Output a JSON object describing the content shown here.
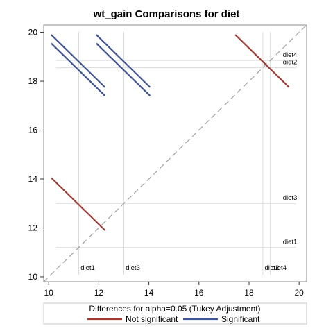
{
  "chart_data": {
    "type": "line",
    "title": "wt_gain Comparisons for diet",
    "xlabel": "",
    "ylabel": "",
    "xlim": [
      9.8,
      20.3
    ],
    "ylim": [
      9.8,
      20.3
    ],
    "xticks": [
      10,
      12,
      14,
      16,
      18,
      20
    ],
    "yticks": [
      10,
      12,
      14,
      16,
      18,
      20
    ],
    "grid": false,
    "diagonal": {
      "from": [
        9.8,
        9.8
      ],
      "to": [
        20.3,
        20.3
      ],
      "color": "#a0a0a0"
    },
    "reference_lines": [
      {
        "label": "diet1",
        "value": 11.2
      },
      {
        "label": "diet3",
        "value": 13.0
      },
      {
        "label": "diet2",
        "value": 18.55
      },
      {
        "label": "diet4",
        "value": 18.85
      }
    ],
    "series": [
      {
        "name": "Not significant",
        "color": "#a23a32",
        "segments": [
          [
            [
              10.1,
              14.05
            ],
            [
              12.25,
              11.9
            ]
          ],
          [
            [
              17.45,
              19.9
            ],
            [
              19.6,
              17.75
            ]
          ]
        ]
      },
      {
        "name": "Significant",
        "color": "#3e5597",
        "segments": [
          [
            [
              10.1,
              19.55
            ],
            [
              12.25,
              17.4
            ]
          ],
          [
            [
              10.1,
              19.9
            ],
            [
              12.25,
              17.75
            ]
          ],
          [
            [
              11.9,
              19.55
            ],
            [
              14.05,
              17.4
            ]
          ],
          [
            [
              11.9,
              19.9
            ],
            [
              14.05,
              17.75
            ]
          ]
        ]
      }
    ],
    "legend": {
      "title": "Differences for alpha=0.05 (Tukey Adjustment)",
      "position": "bottom"
    }
  }
}
